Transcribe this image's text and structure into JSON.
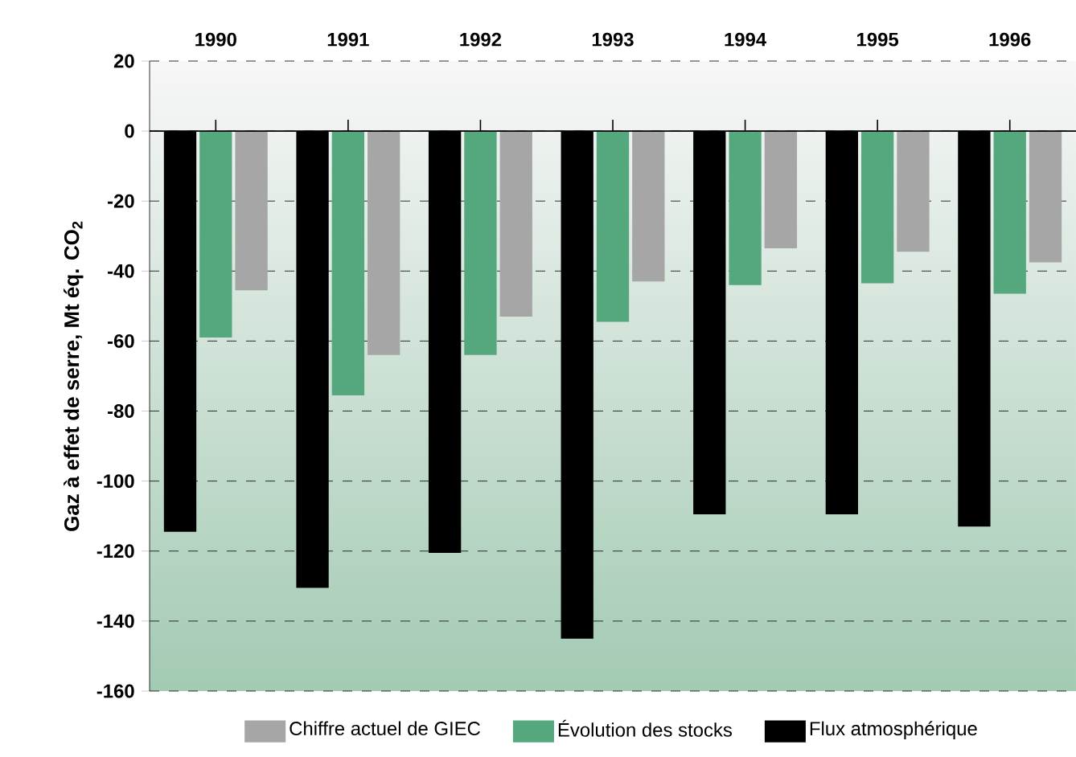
{
  "chart_data": {
    "type": "bar",
    "ylabel": "Gaz à effet de serre, Mt éq. CO$_{2}$",
    "categories": [
      "1990",
      "1991",
      "1992",
      "1993",
      "1994",
      "1995",
      "1996"
    ],
    "series": [
      {
        "name": "Chiffre actuel de GIEC",
        "color": "#a6a6a6",
        "values": [
          -45.5,
          -64,
          -53,
          -43,
          -33.5,
          -34.5,
          -37.5
        ]
      },
      {
        "name": "Évolution des stocks",
        "color": "#55a77e",
        "values": [
          -59,
          -75.5,
          -64,
          -54.5,
          -44,
          -43.5,
          -46.5
        ]
      },
      {
        "name": "Flux atmosphérique",
        "color": "#000000",
        "values": [
          -114.5,
          -130.5,
          -120.5,
          -145,
          -109.5,
          -109.5,
          -113
        ]
      }
    ],
    "ylim": [
      -160,
      20
    ],
    "yticks": [
      -160,
      -140,
      -120,
      -100,
      -80,
      -60,
      -40,
      -20,
      0,
      20
    ],
    "grid": "y",
    "legend": "bottom"
  }
}
